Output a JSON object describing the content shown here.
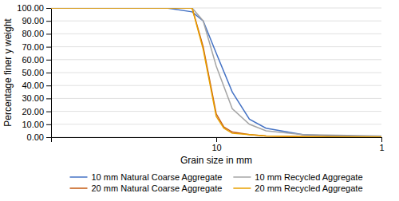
{
  "chart_data": {
    "type": "line",
    "xlabel": "Grain size in mm",
    "ylabel": "Percentage finer y weight",
    "log": "x",
    "xlim": [
      100,
      1
    ],
    "xticks": [
      10,
      1
    ],
    "ylim": [
      0,
      100
    ],
    "yticks": [
      {
        "value": 0,
        "label": "0.00"
      },
      {
        "value": 10,
        "label": "10.00"
      },
      {
        "value": 20,
        "label": "20.00"
      },
      {
        "value": 30,
        "label": "30.00"
      },
      {
        "value": 40,
        "label": "40.00"
      },
      {
        "value": 50,
        "label": "50.00"
      },
      {
        "value": 60,
        "label": "60.00"
      },
      {
        "value": 70,
        "label": "70.00"
      },
      {
        "value": 80,
        "label": "80.00"
      },
      {
        "value": 90,
        "label": "90.00"
      },
      {
        "value": 100,
        "label": "100.00"
      }
    ],
    "grid": "y",
    "legend": "bottom",
    "series": [
      {
        "name": "10 mm Natural Coarse Aggregate",
        "color": "#4472C4",
        "x": [
          100,
          50,
          20,
          14,
          12,
          10,
          8,
          6.3,
          5,
          3,
          2,
          1
        ],
        "values": [
          100,
          100,
          100,
          97,
          90,
          65,
          35,
          14,
          7,
          2,
          1,
          0.5
        ]
      },
      {
        "name": "20 mm Natural Coarse Aggregate",
        "color": "#C55A11",
        "x": [
          100,
          50,
          20,
          14,
          12,
          10,
          9,
          8,
          6.3,
          5,
          3,
          1
        ],
        "values": [
          100,
          100,
          100,
          100,
          70,
          18,
          8,
          4,
          2,
          1,
          0.5,
          0.2
        ]
      },
      {
        "name": "10 mm Recycled Aggregate",
        "color": "#A5A5A5",
        "x": [
          100,
          50,
          30,
          20,
          16,
          14,
          12,
          10,
          8,
          6.3,
          5,
          3,
          1
        ],
        "values": [
          100,
          100,
          100,
          100,
          100,
          100,
          90,
          55,
          22,
          10,
          5,
          2,
          1
        ]
      },
      {
        "name": "20 mm Recycled Aggregate",
        "color": "#E8A000",
        "x": [
          100,
          50,
          20,
          14,
          12,
          10,
          9,
          8,
          6.3,
          5,
          3,
          1
        ],
        "values": [
          100,
          100,
          100,
          100,
          68,
          16,
          7,
          3,
          2,
          1,
          0.5,
          0.2
        ]
      }
    ]
  }
}
